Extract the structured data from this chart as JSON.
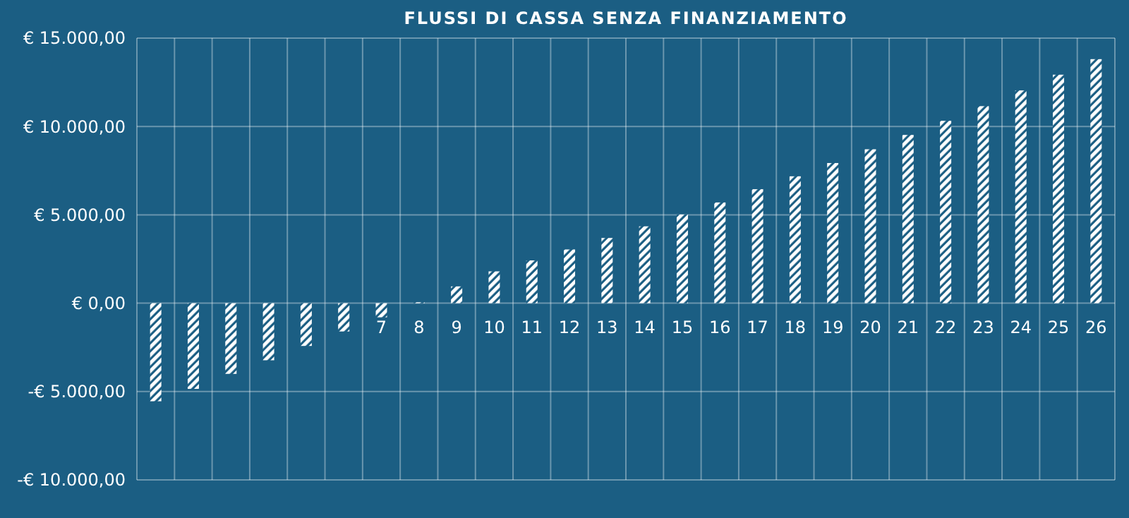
{
  "chart_data": {
    "type": "bar",
    "title": "FLUSSI DI CASSA SENZA FINANZIAMENTO",
    "categories": [
      null,
      null,
      null,
      null,
      null,
      null,
      "7",
      "8",
      "9",
      "10",
      "11",
      "12",
      "13",
      "14",
      "15",
      "16",
      "17",
      "18",
      "19",
      "20",
      "21",
      "22",
      "23",
      "24",
      "25",
      "26"
    ],
    "values": [
      -5550,
      -4850,
      -4000,
      -3230,
      -2420,
      -1600,
      -800,
      50,
      950,
      1800,
      2420,
      3040,
      3690,
      4350,
      5020,
      5700,
      6450,
      7180,
      7930,
      8710,
      9520,
      10320,
      11150,
      12040,
      12930,
      13810
    ],
    "color": "#ffffff",
    "ylim": [
      -10000,
      15000
    ],
    "yticks": [
      {
        "value": -10000,
        "label": "-€ 10.000,00"
      },
      {
        "value": -5000,
        "label": "-€ 5.000,00"
      },
      {
        "value": 0,
        "label": "€ 0,00"
      },
      {
        "value": 5000,
        "label": "€ 5.000,00"
      },
      {
        "value": 10000,
        "label": "€ 10.000,00"
      },
      {
        "value": 15000,
        "label": "€ 15.000,00"
      }
    ],
    "grid": true
  }
}
